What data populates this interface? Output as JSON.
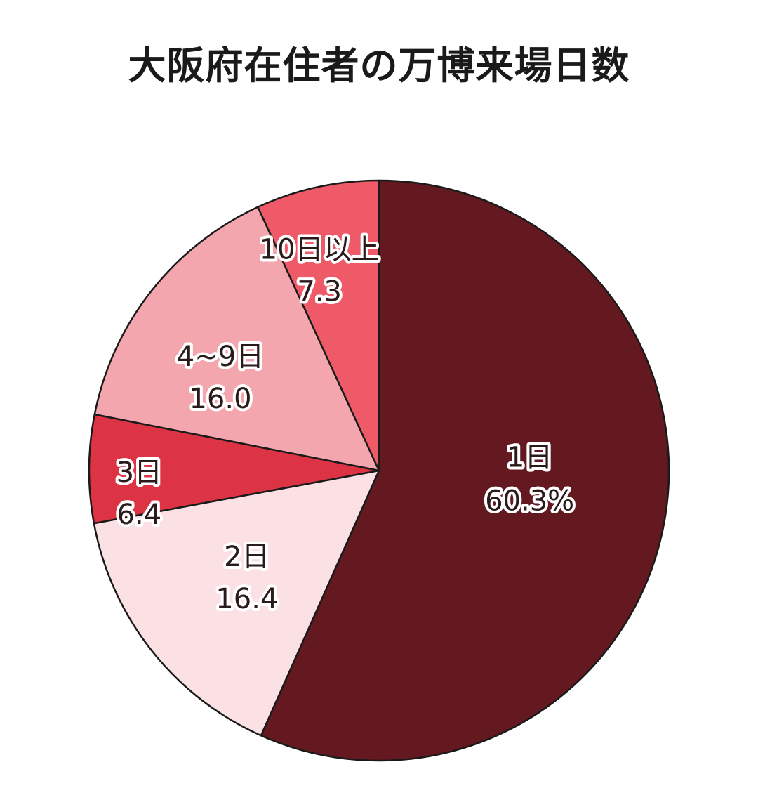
{
  "chart_data": {
    "type": "pie",
    "title": "大阪府在住者の万博来場日数",
    "slices": [
      {
        "label": "1日",
        "value": 60.3,
        "value_text": "60.3%",
        "color": "#641820"
      },
      {
        "label": "2日",
        "value": 16.4,
        "value_text": "16.4",
        "color": "#fbe1e4"
      },
      {
        "label": "3日",
        "value": 6.4,
        "value_text": "6.4",
        "color": "#dc3445"
      },
      {
        "label": "4~9日",
        "value": 16.0,
        "value_text": "16.0",
        "color": "#f4a6ae"
      },
      {
        "label": "10日以上",
        "value": 7.3,
        "value_text": "7.3",
        "color": "#ee5a68"
      }
    ],
    "start_angle": "12 o'clock",
    "direction": "clockwise",
    "legend": "none",
    "labels": "inside slices"
  }
}
